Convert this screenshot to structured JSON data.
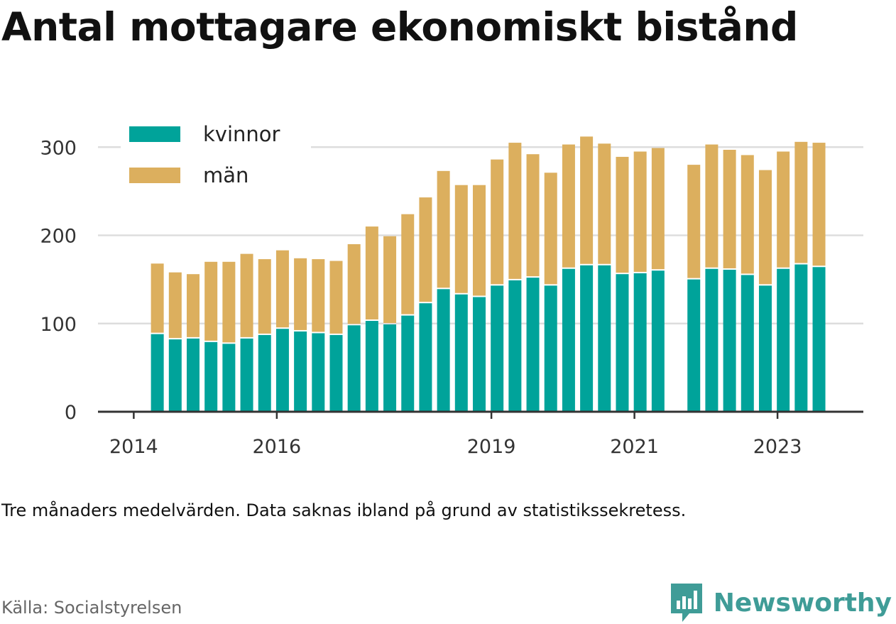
{
  "title": "Antal mottagare ekonomiskt bistånd",
  "note": "Tre månaders medelvärden. Data saknas ibland på grund av statistikssekretess.",
  "source": "Källa: Socialstyrelsen",
  "brand": {
    "name": "Newsworthy",
    "icon": "newsworthy-logo-icon",
    "color": "#3f9c97"
  },
  "colors": {
    "kvinnor": "#00a39a",
    "man": "#dcaf5e",
    "grid": "#dddddd",
    "axis": "#333333"
  },
  "chart_data": {
    "type": "bar",
    "stacked": true,
    "x_ticks": [
      {
        "label": "2014",
        "x": 2014.0
      },
      {
        "label": "2016",
        "x": 2016.0
      },
      {
        "label": "2019",
        "x": 2019.0
      },
      {
        "label": "2021",
        "x": 2021.0
      },
      {
        "label": "2023",
        "x": 2023.0
      }
    ],
    "xlim": [
      2013.5,
      2024.2
    ],
    "ylim": [
      0,
      330
    ],
    "y_ticks": [
      0,
      100,
      200,
      300
    ],
    "grid": true,
    "legend_position": "top-left",
    "x": [
      2014.33,
      2014.58,
      2014.83,
      2015.08,
      2015.33,
      2015.58,
      2015.83,
      2016.08,
      2016.33,
      2016.58,
      2016.83,
      2017.08,
      2017.33,
      2017.58,
      2017.83,
      2018.08,
      2018.33,
      2018.58,
      2018.83,
      2019.08,
      2019.33,
      2019.58,
      2019.83,
      2020.08,
      2020.33,
      2020.58,
      2020.83,
      2021.08,
      2021.33,
      2021.83,
      2022.08,
      2022.33,
      2022.58,
      2022.83,
      2023.08,
      2023.33,
      2023.58
    ],
    "series": [
      {
        "name": "kvinnor",
        "values": [
          88,
          82,
          83,
          79,
          77,
          83,
          87,
          94,
          91,
          89,
          87,
          98,
          103,
          99,
          109,
          123,
          139,
          133,
          130,
          143,
          149,
          152,
          143,
          162,
          166,
          166,
          156,
          157,
          160,
          150,
          162,
          161,
          155,
          143,
          162,
          167,
          164
        ]
      },
      {
        "name": "män",
        "values": [
          80,
          76,
          73,
          91,
          93,
          96,
          86,
          89,
          83,
          84,
          84,
          92,
          107,
          100,
          115,
          120,
          134,
          124,
          127,
          143,
          156,
          140,
          128,
          141,
          146,
          138,
          133,
          138,
          139,
          130,
          141,
          136,
          136,
          131,
          133,
          139,
          141
        ]
      }
    ]
  }
}
